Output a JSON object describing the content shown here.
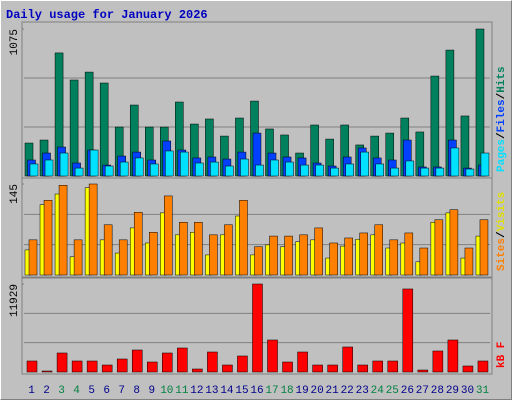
{
  "chart_data": {
    "type": "bar",
    "title": "Daily usage for January 2026",
    "categories": [
      "1",
      "2",
      "3",
      "4",
      "5",
      "6",
      "7",
      "8",
      "9",
      "10",
      "11",
      "12",
      "13",
      "14",
      "15",
      "16",
      "17",
      "18",
      "19",
      "20",
      "21",
      "22",
      "23",
      "24",
      "25",
      "26",
      "27",
      "28",
      "29",
      "30",
      "31"
    ],
    "category_colors": [
      "#00008b",
      "#00008b",
      "#008040",
      "#008040",
      "#00008b",
      "#00008b",
      "#00008b",
      "#00008b",
      "#00008b",
      "#008040",
      "#008040",
      "#00008b",
      "#00008b",
      "#00008b",
      "#00008b",
      "#00008b",
      "#008040",
      "#008040",
      "#00008b",
      "#00008b",
      "#00008b",
      "#00008b",
      "#00008b",
      "#008040",
      "#008040",
      "#00008b",
      "#00008b",
      "#00008b",
      "#00008b",
      "#00008b",
      "#008040"
    ],
    "legend_separator": "/",
    "panels": [
      {
        "ylim": [
          0,
          1075
        ],
        "yticks": [
          1075
        ],
        "grid_divisions": 3,
        "series": [
          {
            "name": "Hits",
            "color": "#00805c",
            "values": [
              241,
              263,
              900,
              702,
              760,
              680,
              358,
              519,
              358,
              358,
              541,
              380,
              417,
              292,
              424,
              548,
              344,
              300,
              168,
              373,
              270,
              373,
              227,
              292,
              314,
              424,
              322,
              731,
              921,
              439,
              1075
            ]
          },
          {
            "name": "Files",
            "color": "#0040ff",
            "values": [
              117,
              168,
              212,
              95,
              190,
              80,
              146,
              175,
              117,
              256,
              190,
              132,
              139,
              124,
              175,
              314,
              168,
              139,
              132,
              95,
              73,
              139,
              205,
              132,
              117,
              263,
              66,
              66,
              263,
              58,
              80
            ]
          },
          {
            "name": "Pages",
            "color": "#00e0ff",
            "values": [
              88,
              117,
              168,
              58,
              190,
              73,
              102,
              132,
              88,
              183,
              175,
              95,
              102,
              73,
              124,
              80,
              117,
              102,
              80,
              80,
              58,
              88,
              175,
              88,
              58,
              110,
              58,
              58,
              205,
              51,
              168
            ]
          }
        ]
      },
      {
        "ylim": [
          0,
          145
        ],
        "yticks": [
          145
        ],
        "grid_divisions": 3,
        "series": [
          {
            "name": "Visits",
            "color": "#ffff00",
            "values": [
              40,
              112,
              129,
              29,
              139,
              56,
              35,
              75,
              51,
              99,
              64,
              68,
              32,
              64,
              94,
              32,
              48,
              45,
              53,
              56,
              27,
              46,
              57,
              64,
              43,
              51,
              21,
              84,
              99,
              27,
              62
            ]
          },
          {
            "name": "Sites",
            "color": "#ff8000",
            "values": [
              56,
              119,
              143,
              56,
              145,
              80,
              56,
              100,
              68,
              126,
              84,
              84,
              64,
              80,
              119,
              45,
              62,
              62,
              64,
              75,
              51,
              59,
              67,
              80,
              56,
              67,
              43,
              88,
              104,
              43,
              88
            ]
          }
        ]
      },
      {
        "ylim": [
          0,
          11929
        ],
        "yticks": [
          11929
        ],
        "grid_divisions": 3,
        "series": [
          {
            "name": "kB F",
            "color": "#ff0000",
            "values": [
              1492,
              136,
              2576,
              1492,
              1492,
              949,
              1763,
              2983,
              1356,
              2576,
              3254,
              407,
              2712,
              949,
              2170,
              11929,
              4339,
              1356,
              2712,
              949,
              949,
              3390,
              949,
              1492,
              1492,
              11255,
              271,
              2848,
              4339,
              814,
              1492
            ]
          }
        ]
      }
    ]
  }
}
